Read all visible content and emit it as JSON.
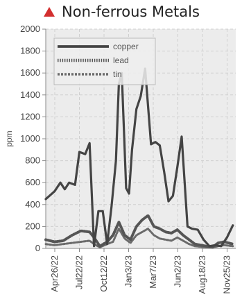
{
  "header": {
    "title": "Non-ferrous Metals",
    "icon": "warning-triangle-icon",
    "icon_color": "#d32f2f"
  },
  "chart_data": {
    "type": "line",
    "title": "Non-ferrous Metals",
    "xlabel": "",
    "ylabel": "ppm",
    "ylim": [
      0,
      2000
    ],
    "yticks": [
      0,
      200,
      400,
      600,
      800,
      1000,
      1200,
      1400,
      1600,
      1800,
      2000
    ],
    "x_tick_labels": [
      "Apr26/22",
      "Jul22/22",
      "Oct12/22",
      "Jan3/23",
      "Mar7/23",
      "Jun2/23",
      "Aug18/23",
      "Nov25/23"
    ],
    "grid": true,
    "legend_position": "top-left",
    "colors": {
      "copper": "#444444",
      "lead": "#555555",
      "tin": "#6a6a6a",
      "plot_background": "#ececec",
      "grid": "#cfcfcf"
    },
    "series": [
      {
        "name": "copper",
        "style": "solid",
        "x": [
          0,
          0.6,
          1.0,
          1.3,
          1.6,
          2.0,
          2.3,
          2.7,
          3.0,
          3.3,
          3.6,
          3.9,
          4.2,
          4.5,
          4.8,
          5.0,
          5.2,
          5.5,
          5.7,
          5.9,
          6.2,
          6.5,
          6.8,
          7.2,
          7.5,
          7.8,
          8.1,
          8.4,
          8.7,
          9.0,
          9.3,
          9.7,
          10.0,
          10.4,
          10.8,
          11.2,
          11.6,
          12.0,
          12.4,
          12.8
        ],
        "values": [
          450,
          520,
          600,
          540,
          600,
          580,
          880,
          860,
          960,
          20,
          340,
          340,
          40,
          380,
          800,
          1500,
          1600,
          550,
          500,
          900,
          1270,
          1390,
          1640,
          950,
          970,
          940,
          700,
          430,
          480,
          740,
          1020,
          200,
          180,
          170,
          80,
          20,
          30,
          20,
          100,
          210
        ]
      },
      {
        "name": "lead",
        "style": "dotted",
        "x": [
          0,
          0.6,
          1.2,
          1.8,
          2.4,
          3.0,
          3.3,
          3.7,
          4.2,
          4.6,
          5.0,
          5.4,
          5.8,
          6.2,
          6.6,
          7.0,
          7.4,
          7.8,
          8.2,
          8.6,
          9.0,
          9.4,
          9.8,
          10.2,
          10.6,
          11.0,
          11.4,
          11.8,
          12.2,
          12.8
        ],
        "values": [
          80,
          60,
          70,
          120,
          160,
          150,
          100,
          20,
          60,
          120,
          240,
          120,
          80,
          200,
          260,
          300,
          200,
          180,
          150,
          140,
          170,
          120,
          80,
          40,
          30,
          20,
          10,
          50,
          60,
          40
        ]
      },
      {
        "name": "tin",
        "style": "dashed",
        "x": [
          0,
          0.6,
          1.2,
          1.8,
          2.4,
          3.0,
          3.3,
          3.7,
          4.2,
          4.6,
          5.0,
          5.4,
          5.8,
          6.2,
          6.6,
          7.0,
          7.4,
          7.8,
          8.2,
          8.6,
          9.0,
          9.4,
          9.8,
          10.2,
          10.6,
          11.0,
          11.4,
          11.8,
          12.2,
          12.8
        ],
        "values": [
          40,
          30,
          40,
          50,
          60,
          70,
          40,
          10,
          40,
          60,
          180,
          90,
          50,
          120,
          150,
          180,
          120,
          90,
          80,
          70,
          100,
          70,
          40,
          20,
          15,
          10,
          10,
          20,
          30,
          20
        ]
      }
    ]
  }
}
